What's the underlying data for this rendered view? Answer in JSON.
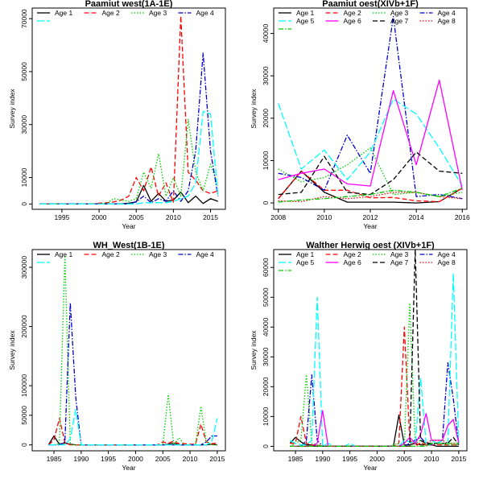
{
  "chart_data": [
    {
      "type": "line",
      "title": "Paamiut       west(1A-1E)",
      "xlabel": "Year",
      "ylabel": "Survey index",
      "xlim": [
        1991,
        2017
      ],
      "ylim": [
        -2000,
        74000
      ],
      "xticks": [
        1995,
        2000,
        2005,
        2010,
        2015
      ],
      "yticks": [
        0,
        10000,
        30000,
        50000,
        70000
      ],
      "x": [
        1992,
        1993,
        1994,
        1995,
        1996,
        1997,
        1998,
        1999,
        2000,
        2001,
        2002,
        2003,
        2004,
        2005,
        2006,
        2007,
        2008,
        2009,
        2010,
        2011,
        2012,
        2013,
        2014,
        2015,
        2016
      ],
      "series": [
        {
          "name": "Age 1",
          "color": "#000000",
          "dash": "solid",
          "values": [
            0,
            0,
            0,
            0,
            0,
            0,
            0,
            0,
            0,
            0,
            0,
            100,
            300,
            800,
            7000,
            1000,
            4000,
            1000,
            1500,
            4500,
            500,
            3000,
            200,
            2000,
            1000
          ]
        },
        {
          "name": "Age 2",
          "color": "#ff0000",
          "dash": "dashed",
          "values": [
            0,
            0,
            0,
            0,
            0,
            0,
            0,
            0,
            300,
            500,
            800,
            1500,
            3000,
            10000,
            5000,
            14000,
            3000,
            8000,
            500,
            71000,
            12000,
            9000,
            5000,
            4000,
            5000
          ]
        },
        {
          "name": "Age 3",
          "color": "#00cc00",
          "dash": "dotted",
          "values": [
            0,
            0,
            0,
            0,
            0,
            0,
            0,
            0,
            0,
            300,
            2000,
            1500,
            1000,
            2000,
            12000,
            6000,
            19000,
            3000,
            10000,
            3000,
            32000,
            12000,
            5000,
            15000,
            7000
          ]
        },
        {
          "name": "Age 4",
          "color": "#0000cc",
          "dash": "dashdot",
          "values": [
            0,
            0,
            0,
            0,
            0,
            0,
            0,
            0,
            0,
            0,
            0,
            0,
            0,
            800,
            3000,
            500,
            2000,
            1000,
            5000,
            1000,
            5000,
            20000,
            57000,
            20000,
            3000
          ]
        },
        {
          "name": "",
          "color": "#00ffff",
          "dash": "longdash",
          "values": [
            0,
            0,
            0,
            0,
            0,
            0,
            0,
            0,
            0,
            0,
            0,
            0,
            0,
            0,
            500,
            500,
            500,
            500,
            1000,
            2000,
            3000,
            8000,
            35000,
            34000,
            3000
          ]
        }
      ]
    },
    {
      "type": "line",
      "title": "Paamiut       oest(XIVb+1F)",
      "xlabel": "Year",
      "ylabel": "Survey index",
      "xlim": [
        2007.8,
        2016.2
      ],
      "ylim": [
        -1500,
        46000
      ],
      "xticks": [
        2008,
        2010,
        2012,
        2014,
        2016
      ],
      "yticks": [
        0,
        10000,
        20000,
        30000,
        40000
      ],
      "x": [
        2008,
        2009,
        2010,
        2011,
        2012,
        2013,
        2014,
        2015,
        2016
      ],
      "series": [
        {
          "name": "Age 1",
          "color": "#000000",
          "dash": "solid",
          "values": [
            1000,
            7500,
            2500,
            200,
            200,
            200,
            0,
            300,
            3500
          ]
        },
        {
          "name": "Age 2",
          "color": "#ff0000",
          "dash": "dashed",
          "values": [
            1000,
            7500,
            3000,
            3000,
            1200,
            1300,
            500,
            300,
            3500
          ]
        },
        {
          "name": "Age 3",
          "color": "#00cc00",
          "dash": "dotted",
          "values": [
            8000,
            5000,
            6000,
            9000,
            13000,
            2000,
            2500,
            1500,
            2500
          ]
        },
        {
          "name": "Age 4",
          "color": "#0000cc",
          "dash": "dashdot",
          "values": [
            7000,
            6000,
            3000,
            16000,
            7000,
            44000,
            1500,
            2000,
            1000
          ]
        },
        {
          "name": "Age 5",
          "color": "#00ffff",
          "dash": "longdash",
          "values": [
            23500,
            8000,
            12500,
            5500,
            12000,
            24500,
            21000,
            13000,
            4000
          ]
        },
        {
          "name": "Age 6",
          "color": "#ff00ff",
          "dash": "solid",
          "values": [
            5500,
            7000,
            8000,
            4500,
            4000,
            26500,
            9000,
            29000,
            3000
          ]
        },
        {
          "name": "Age 7",
          "color": "#000000",
          "dash": "dashed",
          "values": [
            2000,
            2500,
            11000,
            2500,
            2000,
            5500,
            12000,
            7500,
            7000
          ]
        },
        {
          "name": "Age 8",
          "color": "#ff0000",
          "dash": "dotted",
          "values": [
            500,
            300,
            1500,
            1000,
            1500,
            2500,
            2500,
            1500,
            1000
          ]
        },
        {
          "name": "",
          "color": "#00cc00",
          "dash": "dashdot",
          "values": [
            200,
            700,
            1000,
            1500,
            2000,
            3000,
            2500,
            1500,
            3500
          ]
        }
      ]
    },
    {
      "type": "line",
      "title": "WH_West(1B-1E)",
      "xlabel": "Year",
      "ylabel": "Survey index",
      "xlim": [
        1981,
        2016.5
      ],
      "ylim": [
        -10000,
        330000
      ],
      "xticks": [
        1985,
        1990,
        1995,
        2000,
        2005,
        2010,
        2015
      ],
      "yticks": [
        0,
        50000,
        100000,
        200000,
        300000
      ],
      "x": [
        1984,
        1985,
        1986,
        1987,
        1988,
        1989,
        1990,
        1991,
        1992,
        1993,
        1994,
        1995,
        1996,
        1997,
        1998,
        1999,
        2000,
        2001,
        2002,
        2003,
        2004,
        2005,
        2006,
        2007,
        2008,
        2009,
        2010,
        2011,
        2012,
        2013,
        2014,
        2015
      ],
      "series": [
        {
          "name": "Age 1",
          "color": "#000000",
          "dash": "solid",
          "values": [
            0,
            15000,
            1000,
            3000,
            1000,
            0,
            0,
            0,
            0,
            0,
            0,
            0,
            0,
            0,
            0,
            0,
            0,
            0,
            0,
            0,
            0,
            0,
            1000,
            3000,
            0,
            0,
            0,
            0,
            0,
            0,
            1000,
            0
          ]
        },
        {
          "name": "Age 2",
          "color": "#ff0000",
          "dash": "dashed",
          "values": [
            0,
            8000,
            45000,
            4000,
            0,
            0,
            0,
            0,
            0,
            0,
            0,
            0,
            0,
            0,
            0,
            0,
            0,
            0,
            0,
            0,
            0,
            5000,
            3000,
            6000,
            2000,
            2000,
            1000,
            1000,
            35000,
            5000,
            2000,
            3000
          ]
        },
        {
          "name": "Age 3",
          "color": "#00cc00",
          "dash": "dotted",
          "values": [
            0,
            0,
            2000,
            320000,
            0,
            0,
            0,
            0,
            0,
            0,
            0,
            0,
            0,
            0,
            0,
            0,
            0,
            0,
            0,
            0,
            0,
            0,
            85000,
            0,
            12000,
            0,
            0,
            0,
            65000,
            5000,
            0,
            0
          ]
        },
        {
          "name": "Age 4",
          "color": "#0000cc",
          "dash": "dashdot",
          "values": [
            0,
            0,
            0,
            5000,
            240000,
            80000,
            0,
            0,
            0,
            0,
            0,
            0,
            0,
            0,
            0,
            0,
            0,
            0,
            0,
            0,
            0,
            0,
            0,
            0,
            0,
            0,
            0,
            0,
            0,
            5000,
            15000,
            15000
          ]
        },
        {
          "name": "",
          "color": "#00ffff",
          "dash": "longdash",
          "values": [
            0,
            0,
            0,
            0,
            10000,
            60000,
            0,
            0,
            0,
            0,
            0,
            0,
            0,
            0,
            0,
            0,
            0,
            0,
            0,
            0,
            0,
            0,
            0,
            0,
            0,
            0,
            0,
            0,
            0,
            0,
            5000,
            45000
          ]
        }
      ]
    },
    {
      "type": "line",
      "title": "Walther Herwig   oest       (XIVb+1F)",
      "xlabel": "Year",
      "ylabel": "Survey index",
      "xlim": [
        1981,
        2016.5
      ],
      "ylim": [
        -1500,
        66000
      ],
      "xticks": [
        1985,
        1990,
        1995,
        2000,
        2005,
        2010,
        2015
      ],
      "yticks": [
        0,
        10000,
        20000,
        30000,
        40000,
        50000,
        60000
      ],
      "x": [
        1984,
        1985,
        1986,
        1987,
        1988,
        1989,
        1990,
        1991,
        1992,
        1993,
        1994,
        1995,
        1996,
        1997,
        1998,
        1999,
        2000,
        2001,
        2002,
        2003,
        2004,
        2005,
        2006,
        2007,
        2008,
        2009,
        2010,
        2011,
        2012,
        2013,
        2014,
        2015
      ],
      "series": [
        {
          "name": "Age 1",
          "color": "#000000",
          "dash": "solid",
          "values": [
            1000,
            3000,
            1500,
            500,
            500,
            0,
            0,
            0,
            0,
            0,
            0,
            0,
            0,
            0,
            0,
            0,
            0,
            0,
            0,
            0,
            10500,
            500,
            500,
            1000,
            500,
            500,
            500,
            0,
            0,
            0,
            0,
            0
          ]
        },
        {
          "name": "Age 2",
          "color": "#ff0000",
          "dash": "dashed",
          "values": [
            1000,
            1000,
            10000,
            1000,
            500,
            500,
            0,
            0,
            0,
            0,
            0,
            0,
            0,
            0,
            0,
            0,
            0,
            0,
            0,
            0,
            1000,
            40000,
            2000,
            500,
            1000,
            500,
            500,
            500,
            500,
            500,
            500,
            500
          ]
        },
        {
          "name": "Age 3",
          "color": "#00cc00",
          "dash": "dotted",
          "values": [
            0,
            1000,
            2000,
            24000,
            1000,
            500,
            0,
            0,
            0,
            0,
            0,
            0,
            0,
            0,
            0,
            0,
            0,
            0,
            0,
            500,
            1000,
            500,
            48000,
            1000,
            2000,
            500,
            500,
            1000,
            1000,
            500,
            500,
            500
          ]
        },
        {
          "name": "Age 4",
          "color": "#0000cc",
          "dash": "dashdot",
          "values": [
            0,
            0,
            0,
            2000,
            24000,
            2000,
            0,
            0,
            0,
            0,
            0,
            0,
            0,
            0,
            0,
            0,
            0,
            0,
            0,
            0,
            0,
            0,
            1000,
            2000,
            3000,
            1000,
            500,
            1000,
            2000,
            28000,
            16000,
            500
          ]
        },
        {
          "name": "Age 5",
          "color": "#00ffff",
          "dash": "longdash",
          "values": [
            2000,
            1000,
            500,
            500,
            2000,
            50000,
            0,
            1000,
            0,
            0,
            0,
            1000,
            0,
            0,
            0,
            0,
            0,
            0,
            0,
            0,
            0,
            2000,
            1500,
            1000,
            23000,
            1000,
            2000,
            1000,
            2000,
            1000,
            58000,
            1000
          ]
        },
        {
          "name": "Age 6",
          "color": "#ff00ff",
          "dash": "solid",
          "values": [
            0,
            0,
            0,
            0,
            0,
            1000,
            12000,
            0,
            0,
            0,
            0,
            0,
            0,
            0,
            0,
            0,
            0,
            0,
            0,
            0,
            0,
            1000,
            3000,
            1000,
            4000,
            11000,
            2000,
            2000,
            2000,
            7000,
            9000,
            1000
          ]
        },
        {
          "name": "Age 7",
          "color": "#000000",
          "dash": "dashed",
          "values": [
            0,
            0,
            0,
            0,
            0,
            0,
            0,
            0,
            0,
            0,
            0,
            0,
            0,
            0,
            0,
            0,
            0,
            0,
            0,
            0,
            0,
            0,
            0,
            66000,
            2000,
            1000,
            1000,
            1000,
            1000,
            1000,
            3000,
            500
          ]
        },
        {
          "name": "Age 8",
          "color": "#ff0000",
          "dash": "dotted",
          "values": [
            0,
            0,
            0,
            0,
            0,
            0,
            0,
            0,
            0,
            0,
            0,
            0,
            0,
            0,
            0,
            0,
            0,
            0,
            0,
            0,
            0,
            0,
            0,
            0,
            1000,
            1000,
            2000,
            2000,
            2000,
            1000,
            1000,
            1000
          ]
        },
        {
          "name": "",
          "color": "#00cc00",
          "dash": "dashdot",
          "values": [
            0,
            0,
            0,
            0,
            0,
            0,
            0,
            0,
            0,
            0,
            0,
            0,
            0,
            0,
            0,
            0,
            0,
            0,
            0,
            0,
            0,
            0,
            0,
            0,
            0,
            0,
            1000,
            1000,
            1000,
            1000,
            1000,
            1000
          ]
        }
      ]
    }
  ]
}
